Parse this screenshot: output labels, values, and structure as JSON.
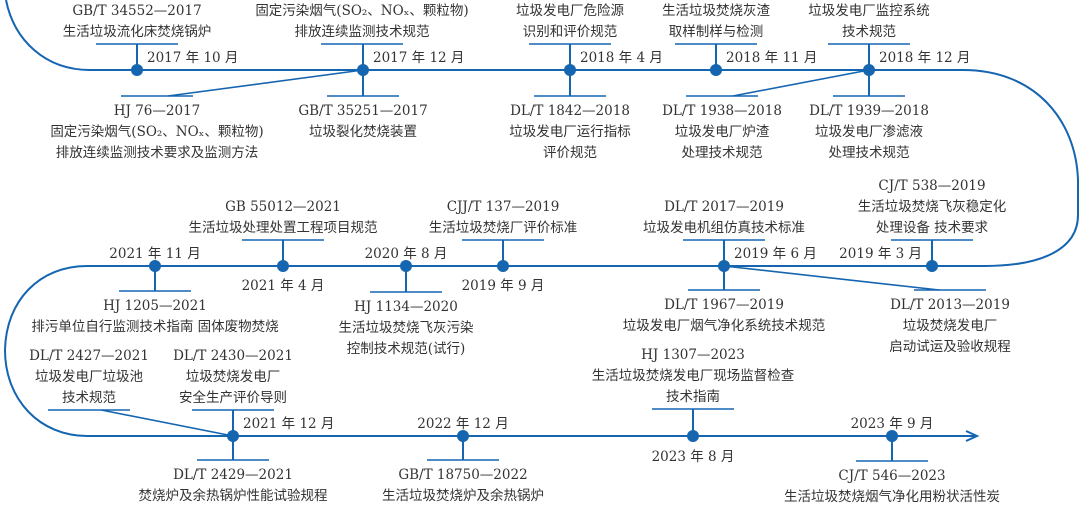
{
  "colors": {
    "line": "#1565b0",
    "text": "#333333"
  },
  "events": [
    {
      "date": "2017 年 10 月",
      "standards": [
        {
          "code": "GB/T 34552—2017",
          "lines": [
            "生活垃圾流化床焚烧锅炉"
          ]
        }
      ]
    },
    {
      "date": "2017 年 12 月",
      "standards": [
        {
          "code": "",
          "lines": [
            "固定污染烟气(SO₂、NOₓ、颗粒物)",
            "排放连续监测技术规范"
          ]
        },
        {
          "code": "HJ 76—2017",
          "lines": [
            "固定污染烟气(SO₂、NOₓ、颗粒物)",
            "排放连续监测技术要求及监测方法"
          ]
        },
        {
          "code": "GB/T 35251—2017",
          "lines": [
            "垃圾裂化焚烧装置"
          ]
        }
      ]
    },
    {
      "date": "2018 年 4 月",
      "standards": [
        {
          "code": "",
          "lines": [
            "垃圾发电厂危险源",
            "识别和评价规范"
          ]
        },
        {
          "code": "DL/T 1842—2018",
          "lines": [
            "垃圾发电厂运行指标",
            "评价规范"
          ]
        }
      ]
    },
    {
      "date": "2018 年 11 月",
      "standards": [
        {
          "code": "",
          "lines": [
            "生活垃圾焚烧灰渣",
            "取样制样与检测"
          ]
        }
      ]
    },
    {
      "date": "2018 年 12 月",
      "standards": [
        {
          "code": "",
          "lines": [
            "垃圾发电厂监控系统",
            "技术规范"
          ]
        },
        {
          "code": "DL/T 1938—2018",
          "lines": [
            "垃圾发电厂炉渣",
            "处理技术规范"
          ]
        },
        {
          "code": "DL/T 1939—2018",
          "lines": [
            "垃圾发电厂渗滤液",
            "处理技术规范"
          ]
        }
      ]
    },
    {
      "date": "2019 年 3 月",
      "standards": [
        {
          "code": "CJ/T 538—2019",
          "lines": [
            "生活垃圾焚烧飞灰稳定化",
            "处理设备 技术要求"
          ]
        }
      ]
    },
    {
      "date": "2019 年 6 月",
      "standards": [
        {
          "code": "DL/T 2017—2019",
          "lines": [
            "垃圾发电机组仿真技术标准"
          ]
        },
        {
          "code": "DL/T 1967—2019",
          "lines": [
            "垃圾发电厂烟气净化系统技术规范"
          ]
        },
        {
          "code": "DL/T 2013—2019",
          "lines": [
            "垃圾焚烧发电厂",
            "启动试运及验收规程"
          ]
        }
      ]
    },
    {
      "date": "2019 年 9 月",
      "standards": [
        {
          "code": "CJJ/T 137—2019",
          "lines": [
            "生活垃圾焚烧厂评价标准"
          ]
        }
      ]
    },
    {
      "date": "2020 年 8 月",
      "standards": [
        {
          "code": "HJ 1134—2020",
          "lines": [
            "生活垃圾焚烧飞灰污染",
            "控制技术规范(试行)"
          ]
        }
      ]
    },
    {
      "date": "2021 年 4 月",
      "standards": [
        {
          "code": "GB 55012—2021",
          "lines": [
            "生活垃圾处理处置工程项目规范"
          ]
        }
      ]
    },
    {
      "date": "2021 年 11 月",
      "standards": [
        {
          "code": "HJ 1205—2021",
          "lines": [
            "排污单位自行监测技术指南 固体废物焚烧"
          ]
        }
      ]
    },
    {
      "date": "2021 年 12 月",
      "standards": [
        {
          "code": "DL/T 2430—2021",
          "lines": [
            "垃圾焚烧发电厂",
            "安全生产评价导则"
          ]
        },
        {
          "code": "DL/T 2427—2021",
          "lines": [
            "垃圾发电厂垃圾池",
            "技术规范"
          ]
        },
        {
          "code": "DL/T 2429—2021",
          "lines": [
            "焚烧炉及余热锅炉性能试验规程"
          ]
        }
      ]
    },
    {
      "date": "2022 年 12 月",
      "standards": [
        {
          "code": "GB/T 18750—2022",
          "lines": [
            "生活垃圾焚烧炉及余热锅炉"
          ]
        }
      ]
    },
    {
      "date": "2023 年 8 月",
      "standards": [
        {
          "code": "HJ 1307—2023",
          "lines": [
            "生活垃圾焚烧发电厂现场监督检查",
            "技术指南"
          ]
        }
      ]
    },
    {
      "date": "2023 年 9 月",
      "standards": [
        {
          "code": "CJ/T 546—2023",
          "lines": [
            "生活垃圾焚烧烟气净化用粉状活性炭"
          ]
        }
      ]
    }
  ]
}
